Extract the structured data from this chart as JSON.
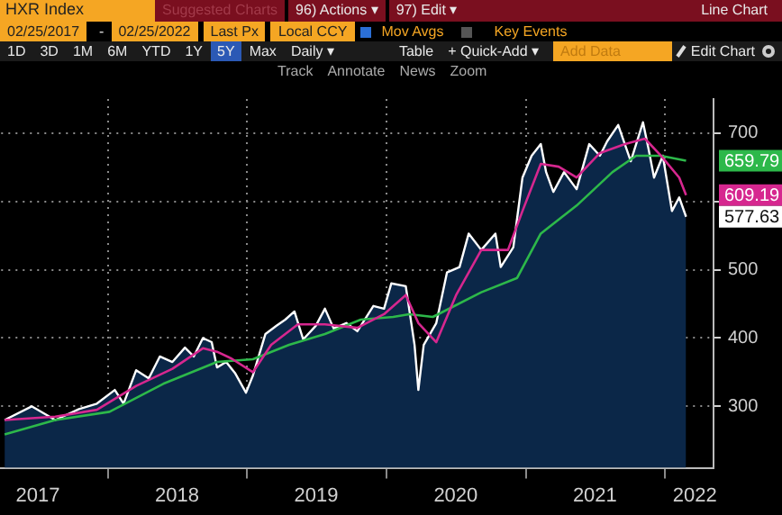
{
  "chart_data": {
    "type": "line",
    "title": "HXR Index",
    "annotations": [
      "Suggested Charts",
      "96) Actions ▾",
      "97) Edit ▾",
      "Line Chart",
      "02/25/2017",
      "-",
      "02/25/2022",
      "Last Px",
      "Local CCY",
      "Mov Avgs",
      "Key Events",
      "1D",
      "3D",
      "1M",
      "6M",
      "YTD",
      "1Y",
      "5Y",
      "Max",
      "Daily ▾",
      "Table",
      "+ Quick-Add ▾",
      "Add Data",
      "Edit Chart",
      "Track",
      "Annotate",
      "News",
      "Zoom",
      {
        "text": "659.79",
        "y": 659.79
      },
      {
        "text": "609.19",
        "y": 609.19
      },
      {
        "text": "577.63",
        "y": 577.63
      }
    ],
    "series": [
      {
        "type": "area",
        "color": "#ffffff",
        "x": [
          "2017-04-05",
          "2017-06-15",
          "2017-08-16",
          "2017-10-17",
          "2017-12-03",
          "2018-01-19",
          "2018-02-11",
          "2018-03-16",
          "2018-04-18",
          "2018-05-17",
          "2018-06-19",
          "2018-07-22",
          "2018-08-14",
          "2018-09-07",
          "2018-09-30",
          "2018-10-14",
          "2018-11-07",
          "2018-11-30",
          "2018-12-29",
          "2019-01-16",
          "2019-02-18",
          "2019-03-19",
          "2019-04-11",
          "2019-05-05",
          "2019-05-28",
          "2019-06-30",
          "2019-07-24",
          "2019-08-16",
          "2019-09-18",
          "2019-10-17",
          "2019-11-28",
          "2019-12-26",
          "2020-01-14",
          "2020-02-21",
          "2020-03-15",
          "2020-03-25",
          "2020-04-08",
          "2020-05-11",
          "2020-06-08",
          "2020-07-11",
          "2020-08-04",
          "2020-09-06",
          "2020-10-13",
          "2020-10-27",
          "2020-11-29",
          "2020-12-23",
          "2021-01-16",
          "2021-02-09",
          "2021-02-23",
          "2021-03-14",
          "2021-04-11",
          "2021-05-14",
          "2021-06-16",
          "2021-07-14",
          "2021-08-02",
          "2021-08-31",
          "2021-10-03",
          "2021-11-04",
          "2021-11-19",
          "2021-12-03",
          "2021-12-26",
          "2022-01-19",
          "2022-02-07",
          "2022-02-25"
        ],
        "values": [
          280,
          300,
          280,
          296,
          304,
          324,
          304,
          353,
          341,
          373,
          365,
          386,
          373,
          400,
          394,
          357,
          365,
          349,
          320,
          345,
          406,
          418,
          427,
          439,
          398,
          418,
          443,
          414,
          422,
          410,
          447,
          443,
          480,
          476,
          390,
          324,
          390,
          422,
          496,
          504,
          553,
          529,
          553,
          504,
          533,
          635,
          667,
          684,
          643,
          614,
          643,
          618,
          684,
          667,
          688,
          712,
          659,
          716,
          676,
          635,
          667,
          586,
          606,
          577.63
        ]
      },
      {
        "color": "#d6278f",
        "x": [
          "2017-04-05",
          "2017-08-16",
          "2017-12-03",
          "2018-03-16",
          "2018-06-19",
          "2018-09-07",
          "2018-10-14",
          "2018-11-21",
          "2019-01-16",
          "2019-03-05",
          "2019-05-14",
          "2019-07-24",
          "2019-10-17",
          "2019-12-26",
          "2020-02-21",
          "2020-03-25",
          "2020-05-11",
          "2020-07-02",
          "2020-09-06",
          "2020-11-15",
          "2020-12-23",
          "2021-02-09",
          "2021-03-28",
          "2021-05-14",
          "2021-07-14",
          "2021-09-18",
          "2021-11-09",
          "2021-12-21",
          "2022-02-07",
          "2022-02-25"
        ],
        "values": [
          280,
          285,
          295,
          330,
          355,
          385,
          380,
          370,
          350,
          390,
          420,
          420,
          415,
          435,
          463,
          422,
          394,
          463,
          529,
          529,
          586,
          655,
          651,
          635,
          671,
          684,
          692,
          667,
          635,
          609.19
        ]
      },
      {
        "color": "#2db84a",
        "x": [
          "2017-04-05",
          "2017-08-16",
          "2018-01-05",
          "2018-05-26",
          "2018-10-14",
          "2019-01-16",
          "2019-04-21",
          "2019-07-24",
          "2019-10-26",
          "2020-01-19",
          "2020-03-01",
          "2020-05-02",
          "2020-09-06",
          "2020-12-09",
          "2021-02-09",
          "2021-05-14",
          "2021-08-16",
          "2021-10-17",
          "2021-12-21",
          "2022-02-25"
        ],
        "values": [
          259,
          280,
          292,
          333,
          365,
          369,
          390,
          406,
          427,
          431,
          435,
          431,
          467,
          488,
          553,
          594,
          643,
          667,
          667,
          659.79
        ]
      }
    ],
    "xlim": [
      "2017-03-27",
      "2022-05-08"
    ],
    "xticks": [
      {
        "value": "2017-07-01",
        "label": "2017"
      },
      {
        "value": "2018-01-01",
        "label": null
      },
      {
        "value": "2018-07-01",
        "label": "2018"
      },
      {
        "value": "2019-01-01",
        "label": null
      },
      {
        "value": "2019-07-01",
        "label": "2019"
      },
      {
        "value": "2020-01-01",
        "label": null
      },
      {
        "value": "2020-07-01",
        "label": "2020"
      },
      {
        "value": "2021-01-01",
        "label": null
      },
      {
        "value": "2021-07-01",
        "label": "2021"
      },
      {
        "value": "2022-01-01",
        "label": null
      },
      {
        "value": "2022-03-20",
        "label": "2022"
      }
    ],
    "ylim": [
      210,
      750
    ],
    "yticks": [
      300,
      400,
      500,
      {
        "value": 600,
        "label": null
      },
      700
    ],
    "grid": true
  }
}
